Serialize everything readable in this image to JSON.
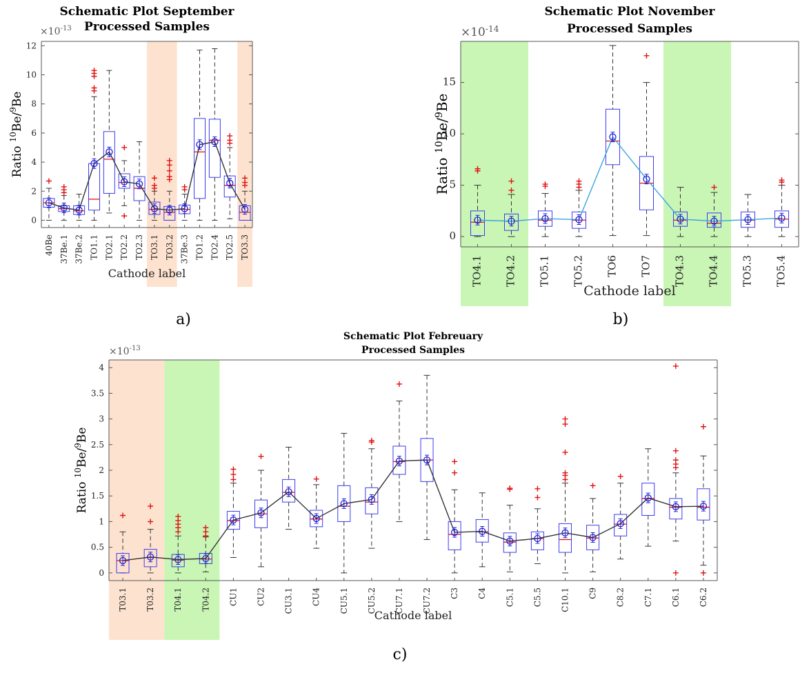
{
  "ylabel_parts": {
    "prefix": "Ratio ",
    "sup1": "10",
    "mid": "Be/",
    "sup2": "9",
    "suffix": "Be"
  },
  "chart_data": [
    {
      "type": "box",
      "caption": "a)",
      "title": [
        "Schematic Plot September",
        "Processed Samples"
      ],
      "xlabel": "Cathode label",
      "multiplier": {
        "base": "×10",
        "exp": "-13"
      },
      "ylim": [
        -0.5,
        12.3
      ],
      "yticks": [
        "0",
        "2",
        "4",
        "6",
        "8",
        "10",
        "12"
      ],
      "line_color": "#333333",
      "categories": [
        "40Be",
        "37Be.1",
        "37Be.2",
        "TO1.1",
        "TO2.1",
        "TO2.2",
        "TO2.3",
        "TO3.1",
        "TO3.2",
        "37Be.3",
        "TO1.2",
        "TO2.4",
        "TO2.5",
        "TO3.3"
      ],
      "highlight_colors": {
        "processed_orange": "#fde3cf",
        "processed_green": "#c9f5b5"
      },
      "highlights": [
        {
          "from": "TO3.1",
          "to": "TO3.2",
          "color": "processed_orange"
        },
        {
          "from": "TO3.3",
          "to": "TO3.3",
          "color": "processed_orange"
        }
      ],
      "boxes": [
        {
          "min": 0,
          "q1": 0.9,
          "median": 1.2,
          "q3": 1.5,
          "max": 2.2,
          "mean": 1.2,
          "outliers": [
            2.7
          ]
        },
        {
          "min": 0,
          "q1": 0.6,
          "median": 0.8,
          "q3": 1.0,
          "max": 1.7,
          "mean": 0.85,
          "outliers": [
            1.9,
            2.1,
            2.3
          ]
        },
        {
          "min": 0,
          "q1": 0.4,
          "median": 0.65,
          "q3": 1.0,
          "max": 1.8,
          "mean": 0.7,
          "outliers": []
        },
        {
          "min": 0,
          "q1": 0.7,
          "median": 1.45,
          "q3": 3.9,
          "max": 8.5,
          "mean": 3.9,
          "outliers": [
            8.9,
            9.1,
            9.9,
            10.1,
            10.3
          ]
        },
        {
          "min": 0.5,
          "q1": 1.85,
          "median": 4.2,
          "q3": 6.1,
          "max": 10.3,
          "mean": 4.7,
          "outliers": []
        },
        {
          "min": 1.0,
          "q1": 2.2,
          "median": 2.6,
          "q3": 3.2,
          "max": 4.1,
          "mean": 2.65,
          "outliers": [
            0.3,
            5.0
          ]
        },
        {
          "min": 0,
          "q1": 1.35,
          "median": 2.2,
          "q3": 3.0,
          "max": 5.4,
          "mean": 2.5,
          "outliers": []
        },
        {
          "min": 0,
          "q1": 0.4,
          "median": 0.75,
          "q3": 1.25,
          "max": 2.0,
          "mean": 0.8,
          "outliers": [
            2.2,
            2.4,
            2.9
          ]
        },
        {
          "min": 0,
          "q1": 0,
          "median": 0.55,
          "q3": 0.95,
          "max": 2.0,
          "mean": 0.7,
          "outliers": [
            2.8,
            3.0,
            3.4,
            3.8,
            4.1
          ]
        },
        {
          "min": 0,
          "q1": 0.45,
          "median": 0.75,
          "q3": 1.05,
          "max": 1.8,
          "mean": 0.8,
          "outliers": [
            2.1,
            2.3
          ]
        },
        {
          "min": 0,
          "q1": 1.5,
          "median": 4.7,
          "q3": 7.0,
          "max": 11.7,
          "mean": 5.2,
          "outliers": []
        },
        {
          "min": 0,
          "q1": 2.95,
          "median": 5.5,
          "q3": 6.95,
          "max": 11.8,
          "mean": 5.4,
          "outliers": []
        },
        {
          "min": 0.1,
          "q1": 1.6,
          "median": 2.4,
          "q3": 3.05,
          "max": 5.0,
          "mean": 2.55,
          "outliers": [
            5.3,
            5.5,
            5.8
          ]
        },
        {
          "min": 0,
          "q1": 0,
          "median": 0.55,
          "q3": 1.0,
          "max": 2.0,
          "mean": 0.75,
          "outliers": [
            2.4,
            2.6,
            2.9
          ]
        }
      ]
    },
    {
      "type": "box",
      "caption": "b)",
      "title": [
        "Schematic Plot November",
        "Processed Samples"
      ],
      "xlabel": "Cathode label",
      "multiplier": {
        "base": "×10",
        "exp": "-14"
      },
      "ylim": [
        -1,
        19
      ],
      "yticks": [
        "0",
        "5",
        "10",
        "15"
      ],
      "ytick_values": [
        0,
        5,
        10,
        15
      ],
      "line_color": "#3aa4dd",
      "categories": [
        "TO4.1",
        "TO4.2",
        "TO5.1",
        "TO5.2",
        "TO6",
        "TO7",
        "TO4.3",
        "TO4.4",
        "TO5.3",
        "TO5.4"
      ],
      "highlight_colors": {
        "processed_orange": "#fde3cf",
        "processed_green": "#c9f5b5"
      },
      "highlights": [
        {
          "from": "TO4.1",
          "to": "TO4.2",
          "color": "processed_green"
        },
        {
          "from": "TO4.3",
          "to": "TO4.4",
          "color": "processed_green"
        }
      ],
      "boxes": [
        {
          "min": 0,
          "q1": 0.1,
          "median": 1.4,
          "q3": 2.5,
          "max": 5.0,
          "mean": 1.6,
          "outliers": [
            6.4,
            6.6
          ]
        },
        {
          "min": 0,
          "q1": 0.6,
          "median": 1.5,
          "q3": 2.2,
          "max": 4.1,
          "mean": 1.5,
          "outliers": [
            4.5,
            5.4
          ]
        },
        {
          "min": 0,
          "q1": 1.0,
          "median": 1.6,
          "q3": 2.5,
          "max": 4.2,
          "mean": 1.75,
          "outliers": [
            4.9,
            5.1
          ]
        },
        {
          "min": 0,
          "q1": 0.8,
          "median": 1.6,
          "q3": 2.4,
          "max": 4.5,
          "mean": 1.65,
          "outliers": [
            4.8,
            5.1,
            5.4
          ]
        },
        {
          "min": 0.1,
          "q1": 7.0,
          "median": 9.3,
          "q3": 12.4,
          "max": 18.6,
          "mean": 9.7,
          "outliers": []
        },
        {
          "min": 0.1,
          "q1": 2.6,
          "median": 5.2,
          "q3": 7.8,
          "max": 15.0,
          "mean": 5.6,
          "outliers": [
            17.6
          ]
        },
        {
          "min": 0,
          "q1": 1.0,
          "median": 1.6,
          "q3": 2.4,
          "max": 4.8,
          "mean": 1.7,
          "outliers": []
        },
        {
          "min": 0,
          "q1": 0.9,
          "median": 1.3,
          "q3": 2.3,
          "max": 4.3,
          "mean": 1.5,
          "outliers": [
            4.8
          ]
        },
        {
          "min": 0,
          "q1": 0.9,
          "median": 1.6,
          "q3": 2.4,
          "max": 4.1,
          "mean": 1.65,
          "outliers": []
        },
        {
          "min": 0,
          "q1": 0.9,
          "median": 1.7,
          "q3": 2.5,
          "max": 5.0,
          "mean": 1.8,
          "outliers": [
            5.3,
            5.5
          ]
        }
      ]
    },
    {
      "type": "box",
      "caption": "c)",
      "title": [
        "Schematic Plot Febreuary",
        "Processed Samples"
      ],
      "xlabel": "Cathode label",
      "multiplier": {
        "base": "×10",
        "exp": "-13"
      },
      "ylim": [
        -0.15,
        4.15
      ],
      "yticks": [
        "0",
        "0.5",
        "1",
        "1.5",
        "2",
        "2.5",
        "3",
        "3.5",
        "4"
      ],
      "ytick_values": [
        0,
        0.5,
        1,
        1.5,
        2,
        2.5,
        3,
        3.5,
        4
      ],
      "line_color": "#333333",
      "categories": [
        "T03.1",
        "T03.2",
        "T04.1",
        "T04.2",
        "CU1",
        "CU2",
        "CU3.1",
        "CU4",
        "CU5.1",
        "CU5.2",
        "CU7.1",
        "CU7.2",
        "C3",
        "C4",
        "C5.1",
        "C5.5",
        "C10.1",
        "C9",
        "C8.2",
        "C7.1",
        "C6.1",
        "C6.2"
      ],
      "highlight_colors": {
        "processed_orange": "#fde3cf",
        "processed_green": "#c9f5b5"
      },
      "highlights": [
        {
          "from": "T03.1",
          "to": "T03.2",
          "color": "processed_orange"
        },
        {
          "from": "T04.1",
          "to": "T04.2",
          "color": "processed_green"
        }
      ],
      "boxes": [
        {
          "min": 0,
          "q1": 0,
          "median": 0.24,
          "q3": 0.38,
          "max": 0.8,
          "mean": 0.24,
          "outliers": [
            1.12
          ]
        },
        {
          "min": 0,
          "q1": 0.12,
          "median": 0.3,
          "q3": 0.46,
          "max": 0.85,
          "mean": 0.31,
          "outliers": [
            1.0,
            1.3
          ]
        },
        {
          "min": 0,
          "q1": 0.12,
          "median": 0.25,
          "q3": 0.36,
          "max": 0.72,
          "mean": 0.26,
          "outliers": [
            0.8,
            0.88,
            0.95,
            1.02,
            1.1
          ]
        },
        {
          "min": 0.02,
          "q1": 0.18,
          "median": 0.27,
          "q3": 0.38,
          "max": 0.7,
          "mean": 0.28,
          "outliers": [
            0.72,
            0.8,
            0.88
          ]
        },
        {
          "min": 0.3,
          "q1": 0.85,
          "median": 1.02,
          "q3": 1.2,
          "max": 1.75,
          "mean": 1.03,
          "outliers": [
            1.82,
            1.92,
            2.02
          ]
        },
        {
          "min": 0.12,
          "q1": 0.88,
          "median": 1.15,
          "q3": 1.42,
          "max": 2.0,
          "mean": 1.17,
          "outliers": [
            2.27
          ]
        },
        {
          "min": 0.85,
          "q1": 1.38,
          "median": 1.57,
          "q3": 1.82,
          "max": 2.45,
          "mean": 1.58,
          "outliers": []
        },
        {
          "min": 0.48,
          "q1": 0.9,
          "median": 1.05,
          "q3": 1.22,
          "max": 1.72,
          "mean": 1.06,
          "outliers": [
            1.83
          ]
        },
        {
          "min": 0,
          "q1": 1.0,
          "median": 1.3,
          "q3": 1.7,
          "max": 2.72,
          "mean": 1.35,
          "outliers": []
        },
        {
          "min": 0.48,
          "q1": 1.15,
          "median": 1.38,
          "q3": 1.66,
          "max": 2.42,
          "mean": 1.43,
          "outliers": [
            2.55,
            2.58
          ]
        },
        {
          "min": 1.0,
          "q1": 1.92,
          "median": 2.17,
          "q3": 2.47,
          "max": 3.35,
          "mean": 2.18,
          "outliers": [
            3.68
          ]
        },
        {
          "min": 0.65,
          "q1": 1.78,
          "median": 2.2,
          "q3": 2.62,
          "max": 3.85,
          "mean": 2.2,
          "outliers": []
        },
        {
          "min": 0,
          "q1": 0.45,
          "median": 0.75,
          "q3": 1.0,
          "max": 1.62,
          "mean": 0.79,
          "outliers": [
            1.95,
            2.17
          ]
        },
        {
          "min": 0.12,
          "q1": 0.6,
          "median": 0.8,
          "q3": 1.04,
          "max": 1.56,
          "mean": 0.81,
          "outliers": []
        },
        {
          "min": 0.02,
          "q1": 0.4,
          "median": 0.6,
          "q3": 0.78,
          "max": 1.32,
          "mean": 0.62,
          "outliers": [
            1.63,
            1.65
          ]
        },
        {
          "min": 0.18,
          "q1": 0.45,
          "median": 0.67,
          "q3": 0.8,
          "max": 1.25,
          "mean": 0.67,
          "outliers": [
            1.47,
            1.64
          ]
        },
        {
          "min": 0,
          "q1": 0.4,
          "median": 0.65,
          "q3": 0.96,
          "max": 1.75,
          "mean": 0.78,
          "outliers": [
            1.82,
            1.9,
            1.95,
            2.35,
            2.9,
            3.0
          ]
        },
        {
          "min": 0.02,
          "q1": 0.45,
          "median": 0.68,
          "q3": 0.93,
          "max": 1.45,
          "mean": 0.69,
          "outliers": [
            1.7
          ]
        },
        {
          "min": 0.27,
          "q1": 0.72,
          "median": 0.95,
          "q3": 1.14,
          "max": 1.75,
          "mean": 0.96,
          "outliers": [
            1.88
          ]
        },
        {
          "min": 0.52,
          "q1": 1.12,
          "median": 1.45,
          "q3": 1.75,
          "max": 2.42,
          "mean": 1.46,
          "outliers": []
        },
        {
          "min": 0.62,
          "q1": 1.05,
          "median": 1.28,
          "q3": 1.45,
          "max": 1.95,
          "mean": 1.29,
          "outliers": [
            0,
            2.05,
            2.12,
            2.2,
            2.38,
            4.03
          ]
        },
        {
          "min": 0.15,
          "q1": 1.03,
          "median": 1.28,
          "q3": 1.64,
          "max": 2.28,
          "mean": 1.3,
          "outliers": [
            0,
            2.85
          ]
        }
      ]
    }
  ]
}
